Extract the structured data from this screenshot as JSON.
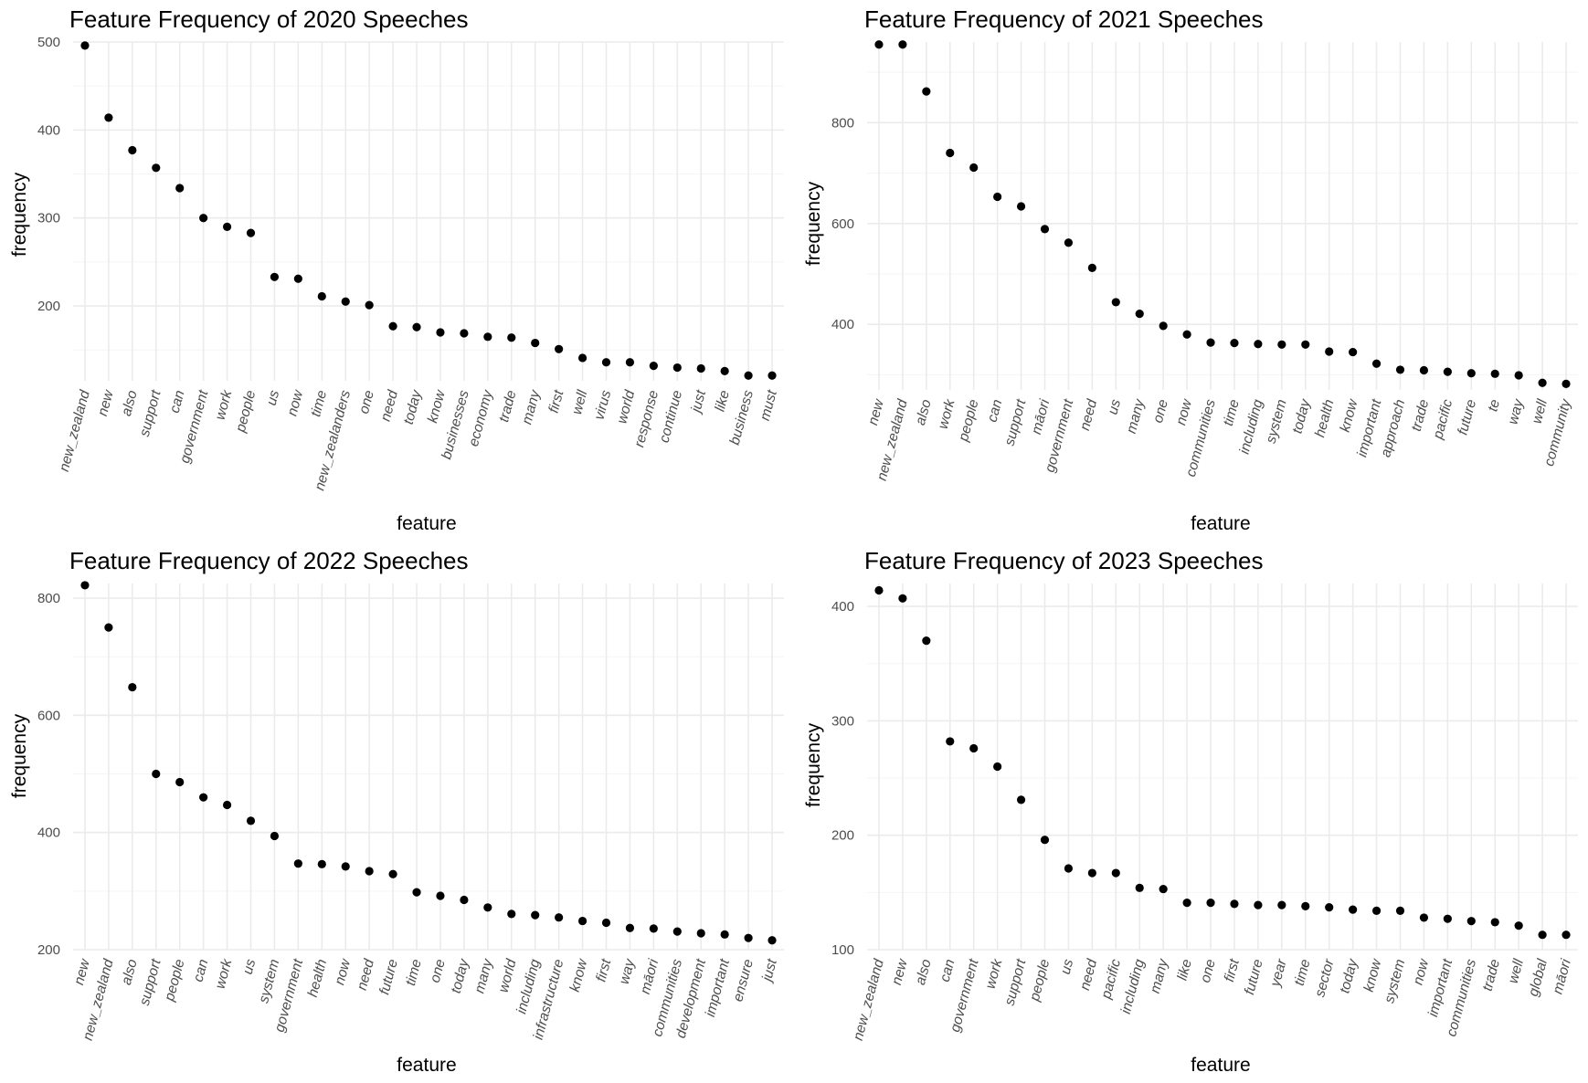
{
  "chart_data": [
    {
      "type": "scatter",
      "title": "Feature Frequency of 2020 Speeches",
      "xlabel": "feature",
      "ylabel": "frequency",
      "ylim": [
        115,
        500
      ],
      "yticks": [
        200,
        300,
        400,
        500
      ],
      "grid": true,
      "categories": [
        "new_zealand",
        "new",
        "also",
        "support",
        "can",
        "government",
        "work",
        "people",
        "us",
        "now",
        "time",
        "new_zealanders",
        "one",
        "need",
        "today",
        "know",
        "businesses",
        "economy",
        "trade",
        "many",
        "first",
        "well",
        "virus",
        "world",
        "response",
        "continue",
        "just",
        "like",
        "business",
        "must"
      ],
      "values": [
        496,
        414,
        377,
        357,
        334,
        300,
        290,
        283,
        233,
        231,
        211,
        205,
        201,
        177,
        176,
        170,
        169,
        165,
        164,
        158,
        151,
        141,
        136,
        136,
        132,
        130,
        129,
        126,
        121,
        121
      ]
    },
    {
      "type": "scatter",
      "title": "Feature Frequency of 2021 Speeches",
      "xlabel": "feature",
      "ylabel": "frequency",
      "ylim": [
        270,
        960
      ],
      "yticks": [
        400,
        600,
        800
      ],
      "grid": true,
      "categories": [
        "new",
        "new_zealand",
        "also",
        "work",
        "people",
        "can",
        "support",
        "māori",
        "government",
        "need",
        "us",
        "many",
        "one",
        "now",
        "communities",
        "time",
        "including",
        "system",
        "today",
        "health",
        "know",
        "important",
        "approach",
        "trade",
        "pacific",
        "future",
        "te",
        "way",
        "well",
        "community"
      ],
      "values": [
        955,
        955,
        862,
        740,
        711,
        653,
        634,
        589,
        562,
        512,
        444,
        421,
        397,
        380,
        364,
        363,
        361,
        360,
        360,
        346,
        345,
        322,
        310,
        309,
        306,
        303,
        302,
        299,
        284,
        282
      ]
    },
    {
      "type": "scatter",
      "title": "Feature Frequency of 2022 Speeches",
      "xlabel": "feature",
      "ylabel": "frequency",
      "ylim": [
        200,
        825
      ],
      "yticks": [
        200,
        400,
        600,
        800
      ],
      "grid": true,
      "categories": [
        "new",
        "new_zealand",
        "also",
        "support",
        "people",
        "can",
        "work",
        "us",
        "system",
        "government",
        "health",
        "now",
        "need",
        "future",
        "time",
        "one",
        "today",
        "many",
        "world",
        "including",
        "infrastructure",
        "know",
        "first",
        "way",
        "māori",
        "communities",
        "development",
        "important",
        "ensure",
        "just"
      ],
      "values": [
        822,
        750,
        648,
        500,
        486,
        460,
        447,
        420,
        394,
        347,
        346,
        342,
        334,
        329,
        298,
        292,
        285,
        272,
        261,
        259,
        255,
        249,
        246,
        237,
        236,
        231,
        228,
        226,
        220,
        216
      ]
    },
    {
      "type": "scatter",
      "title": "Feature Frequency of 2023 Speeches",
      "xlabel": "feature",
      "ylabel": "frequency",
      "ylim": [
        100,
        420
      ],
      "yticks": [
        100,
        200,
        300,
        400
      ],
      "grid": true,
      "categories": [
        "new_zealand",
        "new",
        "also",
        "can",
        "government",
        "work",
        "support",
        "people",
        "us",
        "need",
        "pacific",
        "including",
        "many",
        "like",
        "one",
        "first",
        "future",
        "year",
        "time",
        "sector",
        "today",
        "know",
        "system",
        "now",
        "important",
        "communities",
        "trade",
        "well",
        "global",
        "māori"
      ],
      "values": [
        414,
        407,
        370,
        282,
        276,
        260,
        231,
        196,
        171,
        167,
        167,
        154,
        153,
        141,
        141,
        140,
        139,
        139,
        138,
        137,
        135,
        134,
        134,
        128,
        127,
        125,
        124,
        121,
        113,
        113
      ]
    }
  ]
}
